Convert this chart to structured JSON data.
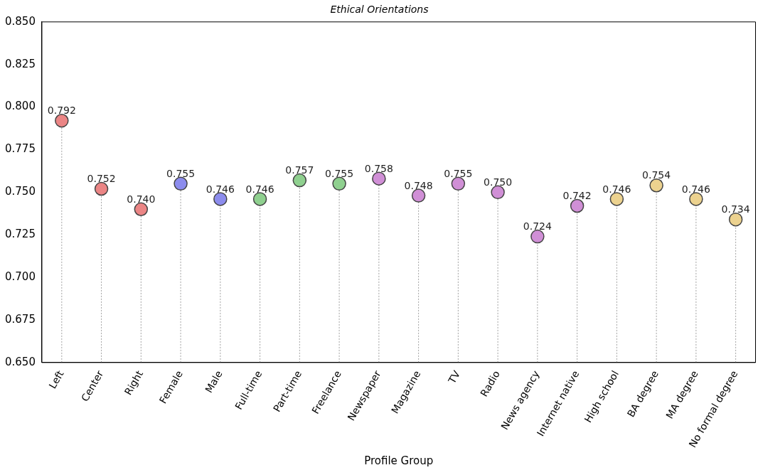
{
  "chart_data": {
    "type": "lollipop",
    "title": "Ethical Orientations",
    "xlabel": "Profile Group",
    "categories": [
      "Left",
      "Center",
      "Right",
      "Female",
      "Male",
      "Full-time",
      "Part-time",
      "Freelance",
      "Newspaper",
      "Magazine",
      "TV",
      "Radio",
      "News agency",
      "Internet native",
      "High school",
      "BA degree",
      "MA degree",
      "No formal degree"
    ],
    "values": [
      0.792,
      0.752,
      0.74,
      0.755,
      0.746,
      0.746,
      0.757,
      0.755,
      0.758,
      0.748,
      0.755,
      0.75,
      0.724,
      0.742,
      0.746,
      0.754,
      0.746,
      0.734
    ],
    "colors": [
      "#eb8585",
      "#eb8585",
      "#eb8585",
      "#8c8ced",
      "#8c8ced",
      "#8fd08f",
      "#8fd08f",
      "#8fd08f",
      "#d08fd6",
      "#d08fd6",
      "#d08fd6",
      "#d08fd6",
      "#d08fd6",
      "#d08fd6",
      "#ecd28f",
      "#ecd28f",
      "#ecd28f",
      "#ecd28f"
    ],
    "ylim": [
      0.65,
      0.85
    ],
    "yticks": [
      {
        "value": 0.65,
        "label": "0.650"
      },
      {
        "value": 0.675,
        "label": "0.675"
      },
      {
        "value": 0.7,
        "label": "0.700"
      },
      {
        "value": 0.725,
        "label": "0.725"
      },
      {
        "value": 0.75,
        "label": "0.750"
      },
      {
        "value": 0.775,
        "label": "0.775"
      },
      {
        "value": 0.8,
        "label": "0.800"
      },
      {
        "value": 0.825,
        "label": "0.825"
      },
      {
        "value": 0.85,
        "label": "0.850"
      }
    ],
    "value_labels": [
      "0.792",
      "0.752",
      "0.740",
      "0.755",
      "0.746",
      "0.746",
      "0.757",
      "0.755",
      "0.758",
      "0.748",
      "0.755",
      "0.750",
      "0.724",
      "0.742",
      "0.746",
      "0.754",
      "0.746",
      "0.734"
    ],
    "grid": false,
    "legend": false,
    "marker": "circle",
    "line_style": "dotted"
  }
}
